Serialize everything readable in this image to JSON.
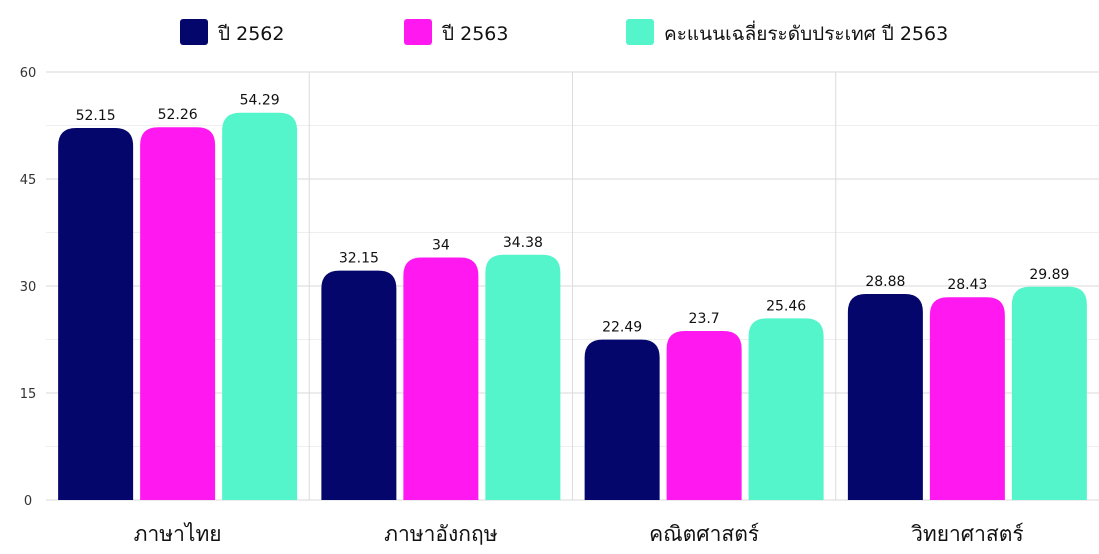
{
  "chart_data": {
    "type": "bar",
    "categories": [
      "ภาษาไทย",
      "ภาษาอังกฤษ",
      "คณิตศาสตร์",
      "วิทยาศาสตร์"
    ],
    "series": [
      {
        "name": "ปี 2562",
        "color": "#04066b",
        "values": [
          52.15,
          32.15,
          22.49,
          28.88
        ]
      },
      {
        "name": "ปี 2563",
        "color": "#ff19f0",
        "values": [
          52.26,
          34,
          23.7,
          28.43
        ]
      },
      {
        "name": "คะแนนเฉลี่ยระดับประเทศ ปี 2563",
        "color": "#55f5cc",
        "values": [
          54.29,
          34.38,
          25.46,
          29.89
        ]
      }
    ],
    "value_labels": [
      [
        "52.15",
        "32.15",
        "22.49",
        "28.88"
      ],
      [
        "52.26",
        "34",
        "23.7",
        "28.43"
      ],
      [
        "54.29",
        "34.38",
        "25.46",
        "29.89"
      ]
    ],
    "ylim": [
      0,
      60
    ],
    "yticks": [
      0,
      15,
      30,
      45,
      60
    ],
    "grid": true,
    "legend_position": "top-center"
  }
}
